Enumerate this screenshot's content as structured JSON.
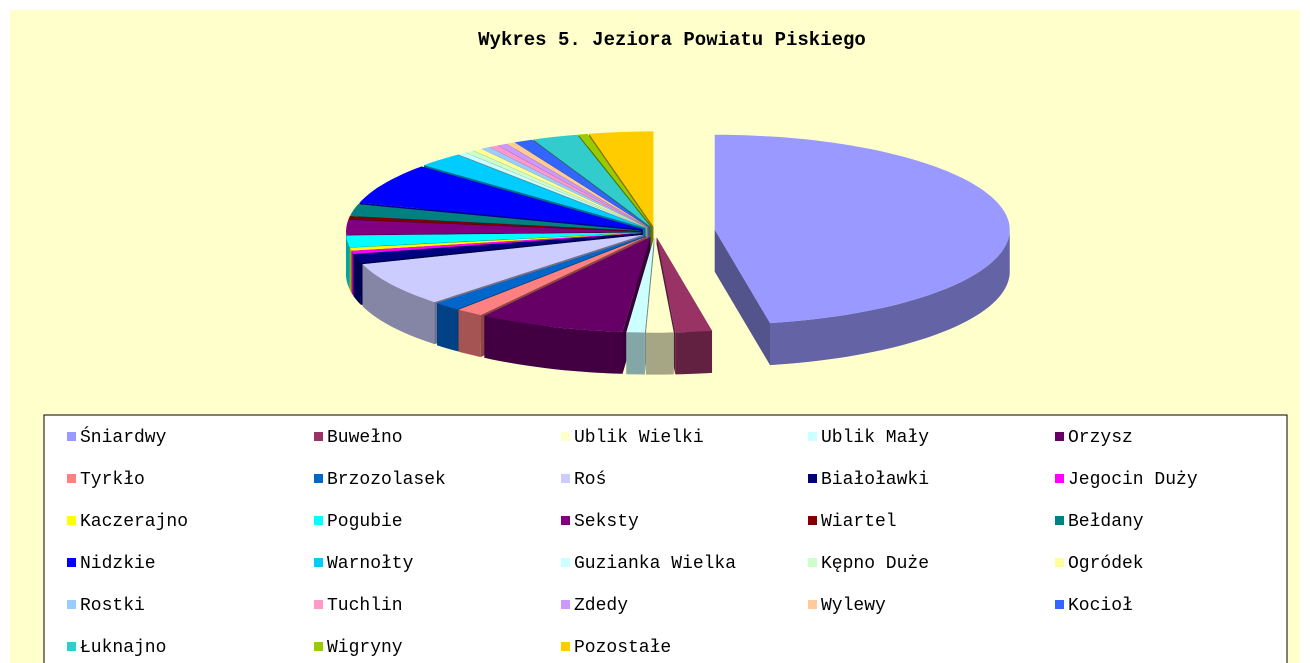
{
  "chart_data": {
    "type": "pie",
    "title": "Wykres 5. Jeziora Powiatu Piskiego",
    "categories": [
      "Śniardwy",
      "Buwełno",
      "Ublik Wielki",
      "Ublik Mały",
      "Orzysz",
      "Tyrkło",
      "Brzozolasek",
      "Roś",
      "Białoławki",
      "Jegocin Duży",
      "Kaczerajno",
      "Pogubie",
      "Seksty",
      "Wiartel",
      "Bełdany",
      "Nidzkie",
      "Warnołty",
      "Guzianka Wielka",
      "Kępno Duże",
      "Ogródek",
      "Rostki",
      "Tuchlin",
      "Zdedy",
      "Wylewy",
      "Kocioł",
      "Łuknajno",
      "Wigryny",
      "Pozostałe"
    ],
    "values": [
      47,
      2,
      1.5,
      1,
      8,
      1.5,
      1.5,
      7.5,
      1.5,
      0.5,
      0.5,
      2,
      2.5,
      0.5,
      2,
      7,
      2.5,
      0.5,
      0.5,
      0.5,
      0.5,
      0.5,
      0.5,
      0.5,
      1,
      2.5,
      0.5,
      3.5
    ],
    "colors": [
      "#9999ff",
      "#993366",
      "#ffffcc",
      "#ccffff",
      "#660066",
      "#ff8080",
      "#0066cc",
      "#ccccff",
      "#000080",
      "#ff00ff",
      "#ffff00",
      "#00ffff",
      "#800080",
      "#800000",
      "#008080",
      "#0000ff",
      "#00ccff",
      "#ccffff",
      "#ccffcc",
      "#ffff99",
      "#99ccff",
      "#ff99cc",
      "#cc99ff",
      "#ffcc99",
      "#3366ff",
      "#33cccc",
      "#99cc00",
      "#ffcc00"
    ],
    "legend": "bottom"
  }
}
